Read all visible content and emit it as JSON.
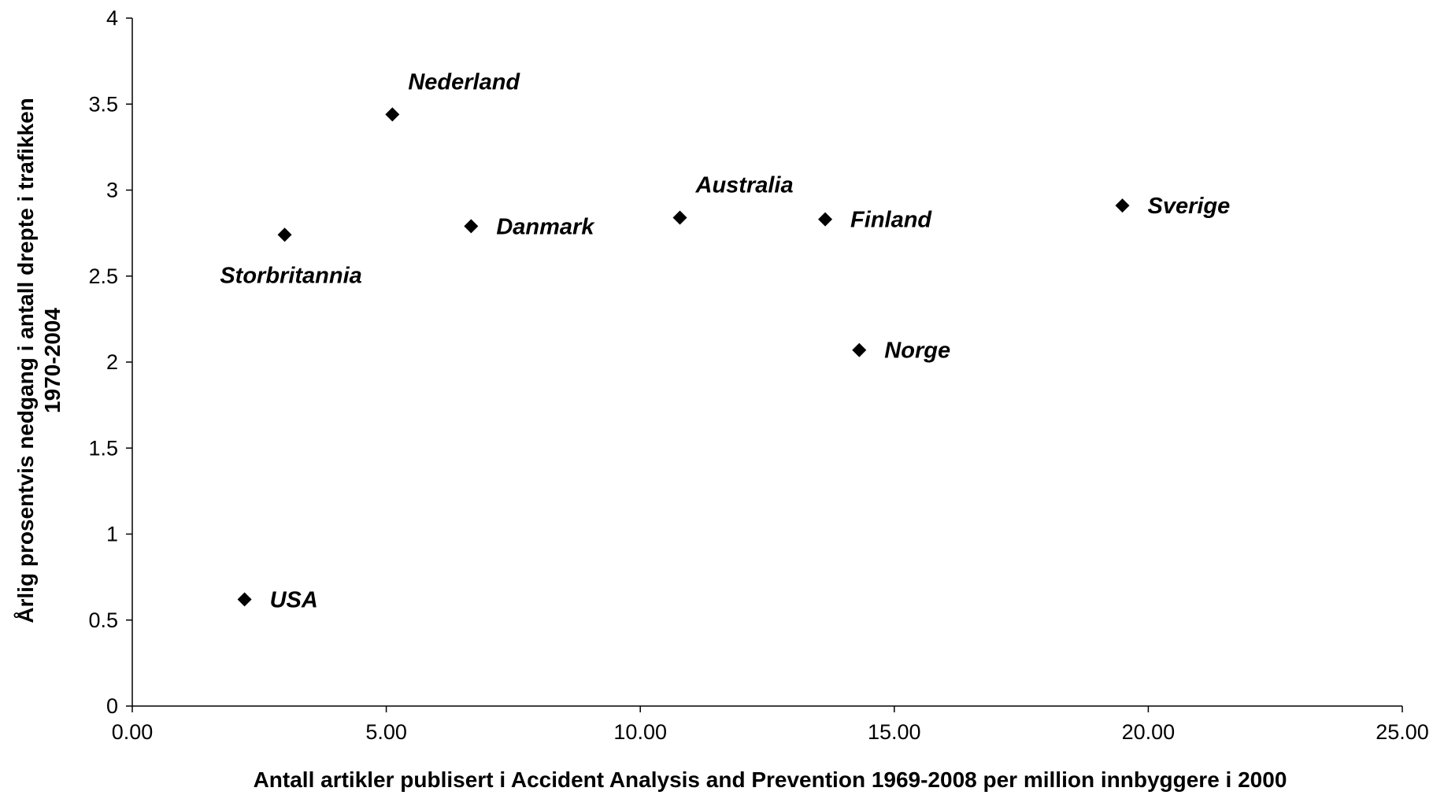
{
  "chart_data": {
    "type": "scatter",
    "title": "",
    "xlabel": "Antall artikler publisert i Accident Analysis and Prevention 1969-2008 per million innbyggere i 2000",
    "ylabel_lines": [
      "Årlig prosentvis nedgang i antall drepte i trafikken",
      "1970-2004"
    ],
    "xlim": [
      0,
      25
    ],
    "ylim": [
      0,
      4
    ],
    "x_ticks": [
      "0.00",
      "5.00",
      "10.00",
      "15.00",
      "20.00",
      "25.00"
    ],
    "x_tick_values": [
      0,
      5,
      10,
      15,
      20,
      25
    ],
    "y_ticks": [
      "0",
      "0.5",
      "1",
      "1.5",
      "2",
      "2.5",
      "3",
      "3.5",
      "4"
    ],
    "y_tick_values": [
      0,
      0.5,
      1,
      1.5,
      2,
      2.5,
      3,
      3.5,
      4
    ],
    "grid": false,
    "legend": "none",
    "marker": "diamond",
    "marker_color": "#000000",
    "points": [
      {
        "label": "Nederland",
        "x": 5.12,
        "y": 3.44,
        "label_position": "above-right"
      },
      {
        "label": "Australia",
        "x": 10.78,
        "y": 2.84,
        "label_position": "above-right"
      },
      {
        "label": "Finland",
        "x": 13.64,
        "y": 2.83,
        "label_position": "right"
      },
      {
        "label": "Sverige",
        "x": 19.49,
        "y": 2.91,
        "label_position": "right"
      },
      {
        "label": "Danmark",
        "x": 6.67,
        "y": 2.79,
        "label_position": "right"
      },
      {
        "label": "Storbritannia",
        "x": 3.0,
        "y": 2.74,
        "label_position": "below"
      },
      {
        "label": "Norge",
        "x": 14.31,
        "y": 2.07,
        "label_position": "right"
      },
      {
        "label": "USA",
        "x": 2.21,
        "y": 0.62,
        "label_position": "right"
      }
    ]
  }
}
